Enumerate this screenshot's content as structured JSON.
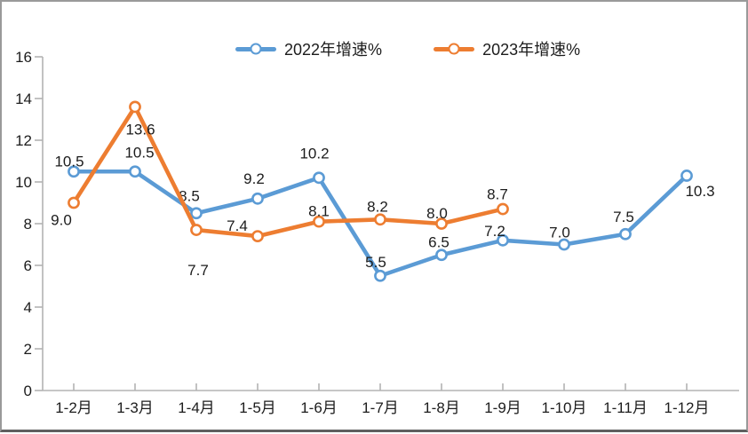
{
  "chart_data": {
    "type": "line",
    "title": "",
    "categories": [
      "1-2月",
      "1-3月",
      "1-4月",
      "1-5月",
      "1-6月",
      "1-7月",
      "1-8月",
      "1-9月",
      "1-10月",
      "1-11月",
      "1-12月"
    ],
    "series": [
      {
        "name": "2022年增速%",
        "color": "#5B9BD5",
        "values": [
          10.5,
          10.5,
          8.5,
          9.2,
          10.2,
          5.5,
          6.5,
          7.2,
          7.0,
          7.5,
          10.3
        ],
        "label_offsets": [
          [
            -5,
            -6
          ],
          [
            5,
            -16
          ],
          [
            -8,
            -14
          ],
          [
            -4,
            -17
          ],
          [
            -5,
            -22
          ],
          [
            -5,
            -10
          ],
          [
            -3,
            -9
          ],
          [
            -9,
            -5
          ],
          [
            -5,
            -8
          ],
          [
            -2,
            -14
          ],
          [
            15,
            23
          ]
        ]
      },
      {
        "name": "2023年增速%",
        "color": "#ED7D31",
        "values": [
          9.0,
          13.6,
          7.7,
          7.4,
          8.1,
          8.2,
          8.0,
          8.7
        ],
        "label_offsets": [
          [
            -14,
            25
          ],
          [
            6,
            31
          ],
          [
            2,
            51
          ],
          [
            -23,
            -6
          ],
          [
            0,
            -6
          ],
          [
            -3,
            -9
          ],
          [
            -5,
            -6
          ],
          [
            -6,
            -11
          ]
        ]
      }
    ],
    "xlabel": "",
    "ylabel": "",
    "ylim": [
      0,
      16
    ],
    "ytick_step": 2,
    "grid": false,
    "data_labels": true,
    "decimal_places": 1,
    "legend_position": "top-center",
    "marker_style": "open-circle",
    "axis_color": "#b3b3b3",
    "text_color": "#1c1c1c",
    "background": "#ffffff",
    "border_color": "#9a9a9a"
  }
}
